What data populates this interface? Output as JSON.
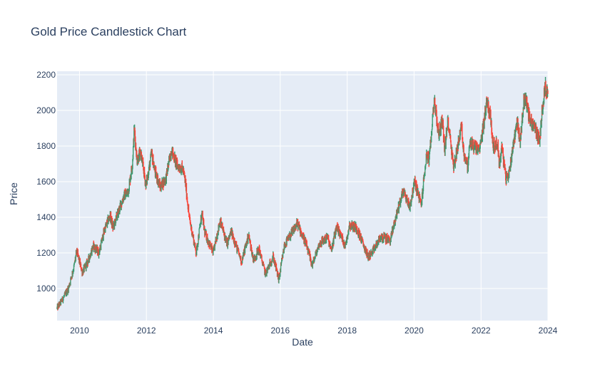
{
  "chart_data": {
    "type": "candlestick",
    "title": "Gold Price Candlestick Chart",
    "xlabel": "Date",
    "ylabel": "Price",
    "xlim": [
      "2009-05-01",
      "2024-01-01"
    ],
    "ylim": [
      820,
      2220
    ],
    "grid": true,
    "background": "#e5ecf6",
    "colors": {
      "increasing": "#3d9970",
      "decreasing": "#ff4136"
    },
    "x_ticks": [
      {
        "date": "2010-01-01",
        "label": "2010"
      },
      {
        "date": "2012-01-01",
        "label": "2012"
      },
      {
        "date": "2014-01-01",
        "label": "2014"
      },
      {
        "date": "2016-01-01",
        "label": "2016"
      },
      {
        "date": "2018-01-01",
        "label": "2018"
      },
      {
        "date": "2020-01-01",
        "label": "2020"
      },
      {
        "date": "2022-01-01",
        "label": "2022"
      },
      {
        "date": "2024-01-01",
        "label": "2024"
      }
    ],
    "y_ticks": [
      1000,
      1200,
      1400,
      1600,
      1800,
      2000,
      2200
    ],
    "price_path": [
      [
        "2009-05-01",
        890
      ],
      [
        "2009-07-01",
        940
      ],
      [
        "2009-09-01",
        1000
      ],
      [
        "2009-11-01",
        1120
      ],
      [
        "2009-12-01",
        1210
      ],
      [
        "2010-02-01",
        1090
      ],
      [
        "2010-04-01",
        1150
      ],
      [
        "2010-06-01",
        1240
      ],
      [
        "2010-08-01",
        1200
      ],
      [
        "2010-10-01",
        1330
      ],
      [
        "2010-12-01",
        1410
      ],
      [
        "2011-01-01",
        1340
      ],
      [
        "2011-03-01",
        1430
      ],
      [
        "2011-05-01",
        1520
      ],
      [
        "2011-06-15",
        1540
      ],
      [
        "2011-08-01",
        1700
      ],
      [
        "2011-08-22",
        1900
      ],
      [
        "2011-09-20",
        1720
      ],
      [
        "2011-11-01",
        1760
      ],
      [
        "2011-12-28",
        1580
      ],
      [
        "2012-02-28",
        1760
      ],
      [
        "2012-04-01",
        1660
      ],
      [
        "2012-06-01",
        1570
      ],
      [
        "2012-08-01",
        1620
      ],
      [
        "2012-10-01",
        1780
      ],
      [
        "2012-12-01",
        1690
      ],
      [
        "2013-02-01",
        1670
      ],
      [
        "2013-03-01",
        1600
      ],
      [
        "2013-04-15",
        1390
      ],
      [
        "2013-06-28",
        1200
      ],
      [
        "2013-08-28",
        1420
      ],
      [
        "2013-10-01",
        1310
      ],
      [
        "2013-12-31",
        1200
      ],
      [
        "2014-03-15",
        1380
      ],
      [
        "2014-06-01",
        1250
      ],
      [
        "2014-07-15",
        1320
      ],
      [
        "2014-11-05",
        1150
      ],
      [
        "2015-01-20",
        1300
      ],
      [
        "2015-03-15",
        1160
      ],
      [
        "2015-05-15",
        1220
      ],
      [
        "2015-07-24",
        1080
      ],
      [
        "2015-10-15",
        1180
      ],
      [
        "2015-12-17",
        1050
      ],
      [
        "2016-02-15",
        1240
      ],
      [
        "2016-07-06",
        1365
      ],
      [
        "2016-10-01",
        1260
      ],
      [
        "2016-12-15",
        1130
      ],
      [
        "2017-03-01",
        1250
      ],
      [
        "2017-06-01",
        1290
      ],
      [
        "2017-07-10",
        1210
      ],
      [
        "2017-09-08",
        1350
      ],
      [
        "2017-12-12",
        1240
      ],
      [
        "2018-01-25",
        1360
      ],
      [
        "2018-04-15",
        1340
      ],
      [
        "2018-08-16",
        1180
      ],
      [
        "2018-10-01",
        1200
      ],
      [
        "2019-01-01",
        1290
      ],
      [
        "2019-04-15",
        1270
      ],
      [
        "2019-06-25",
        1420
      ],
      [
        "2019-09-04",
        1550
      ],
      [
        "2019-11-15",
        1460
      ],
      [
        "2020-01-08",
        1600
      ],
      [
        "2020-03-19",
        1470
      ],
      [
        "2020-05-15",
        1750
      ],
      [
        "2020-06-15",
        1720
      ],
      [
        "2020-08-07",
        2070
      ],
      [
        "2020-09-25",
        1860
      ],
      [
        "2020-11-06",
        1950
      ],
      [
        "2020-11-30",
        1770
      ],
      [
        "2021-01-06",
        1950
      ],
      [
        "2021-03-08",
        1680
      ],
      [
        "2021-06-01",
        1910
      ],
      [
        "2021-06-25",
        1770
      ],
      [
        "2021-08-09",
        1680
      ],
      [
        "2021-09-01",
        1820
      ],
      [
        "2021-12-15",
        1770
      ],
      [
        "2022-03-08",
        2060
      ],
      [
        "2022-04-15",
        1960
      ],
      [
        "2022-05-15",
        1800
      ],
      [
        "2022-07-01",
        1810
      ],
      [
        "2022-07-21",
        1690
      ],
      [
        "2022-08-15",
        1800
      ],
      [
        "2022-09-28",
        1620
      ],
      [
        "2022-11-01",
        1640
      ],
      [
        "2022-12-15",
        1800
      ],
      [
        "2023-02-01",
        1950
      ],
      [
        "2023-02-28",
        1810
      ],
      [
        "2023-04-13",
        2050
      ],
      [
        "2023-05-04",
        2070
      ],
      [
        "2023-06-15",
        1950
      ],
      [
        "2023-08-15",
        1900
      ],
      [
        "2023-10-05",
        1820
      ],
      [
        "2023-10-27",
        2000
      ],
      [
        "2023-12-04",
        2140
      ],
      [
        "2023-12-31",
        2070
      ]
    ]
  }
}
